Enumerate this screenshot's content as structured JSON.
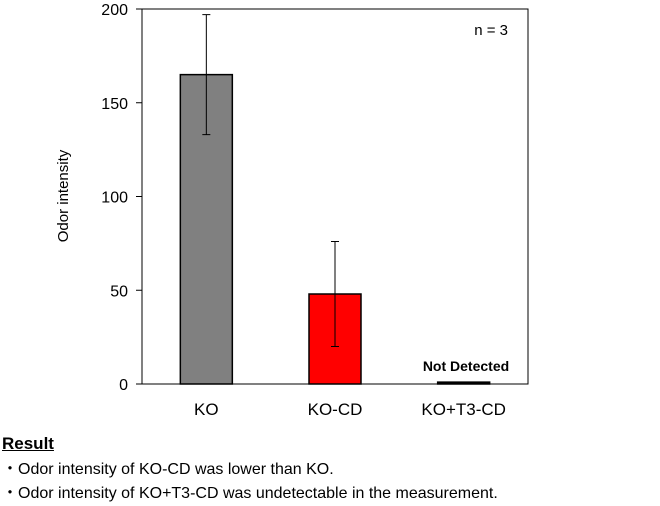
{
  "chart_data": {
    "type": "bar",
    "categories": [
      "KO",
      "KO-CD",
      "KO+T3-CD"
    ],
    "values": [
      165,
      48,
      1
    ],
    "error_bars": [
      32,
      28,
      null
    ],
    "colors": [
      "#808080",
      "#ff0000",
      "#000000"
    ],
    "ylabel": "Odor intensity",
    "ylim": [
      0,
      200
    ],
    "yticks": [
      0,
      50,
      100,
      150,
      200
    ],
    "grid": false,
    "annotations": {
      "sample_size": "n = 3",
      "not_detected": "Not Detected"
    }
  },
  "result": {
    "title": "Result",
    "items": [
      "・Odor intensity of KO-CD was lower than KO.",
      "・Odor intensity of KO+T3-CD was undetectable in the measurement."
    ]
  }
}
